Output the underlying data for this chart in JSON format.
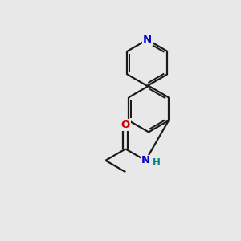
{
  "background_color": "#e8e8e8",
  "bond_color": "#1a1a1a",
  "nitrogen_color": "#0000cc",
  "oxygen_color": "#cc0000",
  "nh_color": "#008080",
  "line_width": 1.6,
  "dbo": 0.006,
  "figsize": [
    3.0,
    3.0
  ],
  "dpi": 100,
  "xlim": [
    0.1,
    0.9
  ],
  "ylim": [
    0.08,
    0.92
  ]
}
